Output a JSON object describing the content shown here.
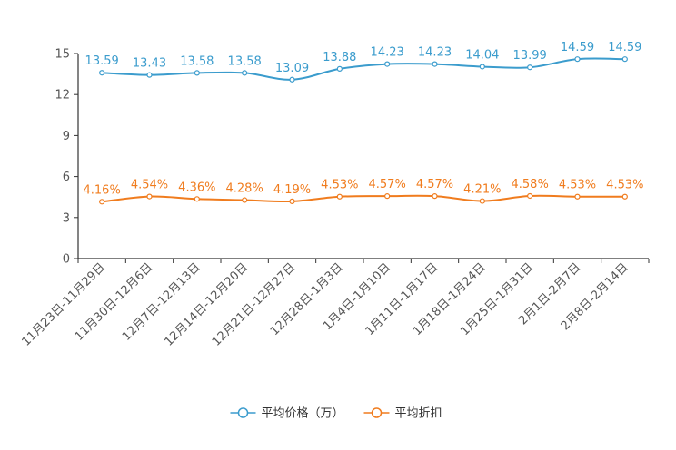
{
  "chart_data": {
    "type": "line",
    "title": "",
    "xlabel": "",
    "ylabel": "",
    "ylim": [
      0,
      15
    ],
    "yticks": [
      0,
      3,
      6,
      9,
      12,
      15
    ],
    "categories": [
      "11月23日-11月29日",
      "11月30日-12月6日",
      "12月7日-12月13日",
      "12月14日-12月20日",
      "12月21日-12月27日",
      "12月28日-1月3日",
      "1月4日-1月10日",
      "1月11日-1月17日",
      "1月18日-1月24日",
      "1月25日-1月31日",
      "2月1日-2月7日",
      "2月8日-2月14日"
    ],
    "series": [
      {
        "name": "平均价格（万）",
        "color": "#3b9ccd",
        "values": [
          13.59,
          13.43,
          13.58,
          13.58,
          13.09,
          13.88,
          14.23,
          14.23,
          14.04,
          13.99,
          14.59,
          14.59
        ],
        "labels": [
          "13.59",
          "13.43",
          "13.58",
          "13.58",
          "13.09",
          "13.88",
          "14.23",
          "14.23",
          "14.04",
          "13.99",
          "14.59",
          "14.59"
        ]
      },
      {
        "name": "平均折扣",
        "color": "#f07c1e",
        "values": [
          4.16,
          4.54,
          4.36,
          4.28,
          4.19,
          4.53,
          4.57,
          4.57,
          4.21,
          4.58,
          4.53,
          4.53
        ],
        "labels": [
          "4.16%",
          "4.54%",
          "4.36%",
          "4.28%",
          "4.19%",
          "4.53%",
          "4.57%",
          "4.57%",
          "4.21%",
          "4.58%",
          "4.53%",
          "4.53%"
        ]
      }
    ],
    "legend_position": "bottom-center",
    "grid": false
  }
}
